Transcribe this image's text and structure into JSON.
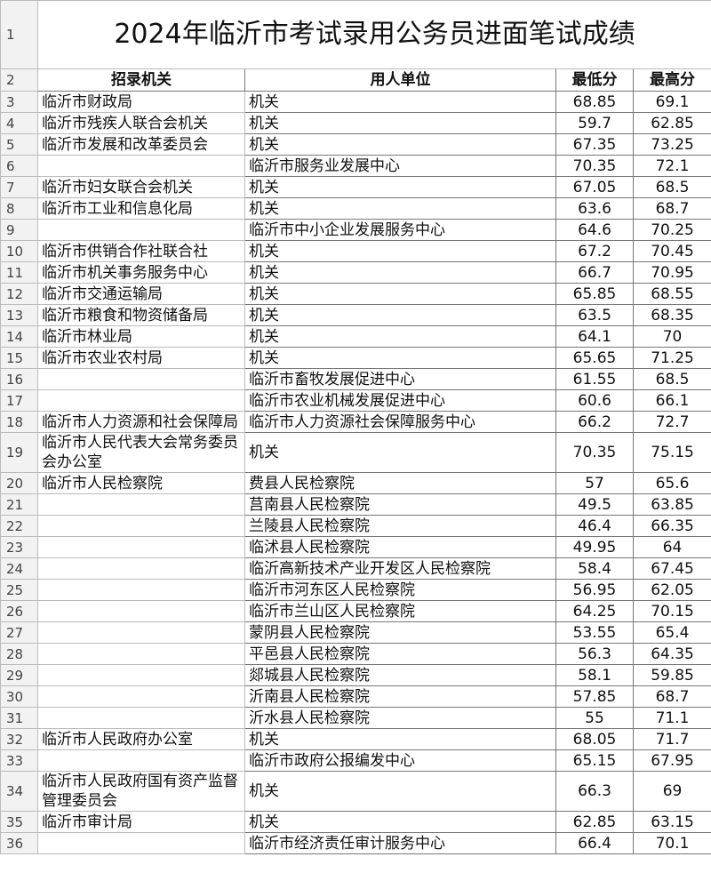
{
  "title_row": "1",
  "title": "2024年临沂市考试录用公务员进面笔试成绩",
  "header": {
    "row": "2",
    "columns": [
      "招录机关",
      "用人单位",
      "最低分",
      "最高分"
    ]
  },
  "rows": [
    [
      "3",
      "临沂市财政局",
      "机关",
      68.85,
      69.1
    ],
    [
      "4",
      "临沂市残疾人联合会机关",
      "机关",
      59.7,
      62.85
    ],
    [
      "5",
      "临沂市发展和改革委员会",
      "机关",
      67.35,
      73.25
    ],
    [
      "6",
      null,
      "临沂市服务业发展中心",
      70.35,
      72.1
    ],
    [
      "7",
      "临沂市妇女联合会机关",
      "机关",
      67.05,
      68.5
    ],
    [
      "8",
      "临沂市工业和信息化局",
      "机关",
      63.6,
      68.7
    ],
    [
      "9",
      null,
      "临沂市中小企业发展服务中心",
      64.6,
      70.25
    ],
    [
      "10",
      "临沂市供销合作社联合社",
      "机关",
      67.2,
      70.45
    ],
    [
      "11",
      "临沂市机关事务服务中心",
      "机关",
      66.7,
      70.95
    ],
    [
      "12",
      "临沂市交通运输局",
      "机关",
      65.85,
      68.55
    ],
    [
      "13",
      "临沂市粮食和物资储备局",
      "机关",
      63.5,
      68.35
    ],
    [
      "14",
      "临沂市林业局",
      "机关",
      64.1,
      70
    ],
    [
      "15",
      "临沂市农业农村局",
      "机关",
      65.65,
      71.25
    ],
    [
      "16",
      null,
      "临沂市畜牧发展促进中心",
      61.55,
      68.5
    ],
    [
      "17",
      null,
      "临沂市农业机械发展促进中心",
      60.6,
      66.1
    ],
    [
      "18",
      "临沂市人力资源和社会保障局",
      "临沂市人力资源社会保障服务中心",
      66.2,
      72.7
    ],
    [
      "19",
      "临沂市人民代表大会常务委员会办公室",
      "机关",
      70.35,
      75.15
    ],
    [
      "20",
      "临沂市人民检察院",
      "费县人民检察院",
      57,
      65.6
    ],
    [
      "21",
      null,
      "莒南县人民检察院",
      49.5,
      63.85
    ],
    [
      "22",
      null,
      "兰陵县人民检察院",
      46.4,
      66.35
    ],
    [
      "23",
      null,
      "临沭县人民检察院",
      49.95,
      64
    ],
    [
      "24",
      null,
      "临沂高新技术产业开发区人民检察院",
      58.4,
      67.45
    ],
    [
      "25",
      null,
      "临沂市河东区人民检察院",
      56.95,
      62.05
    ],
    [
      "26",
      null,
      "临沂市兰山区人民检察院",
      64.25,
      70.15
    ],
    [
      "27",
      null,
      "蒙阴县人民检察院",
      53.55,
      65.4
    ],
    [
      "28",
      null,
      "平邑县人民检察院",
      56.3,
      64.35
    ],
    [
      "29",
      null,
      "郯城县人民检察院",
      58.1,
      59.85
    ],
    [
      "30",
      null,
      "沂南县人民检察院",
      57.85,
      68.7
    ],
    [
      "31",
      null,
      "沂水县人民检察院",
      55,
      71.1
    ],
    [
      "32",
      "临沂市人民政府办公室",
      "机关",
      68.05,
      71.7
    ],
    [
      "33",
      null,
      "临沂市政府公报编发中心",
      65.15,
      67.95
    ],
    [
      "34",
      "临沂市人民政府国有资产监督管理委员会",
      "机关",
      66.3,
      69
    ],
    [
      "35",
      "临沂市审计局",
      "机关",
      62.85,
      63.15
    ],
    [
      "36",
      null,
      "临沂市经济责任审计服务中心",
      66.4,
      70.1
    ]
  ]
}
